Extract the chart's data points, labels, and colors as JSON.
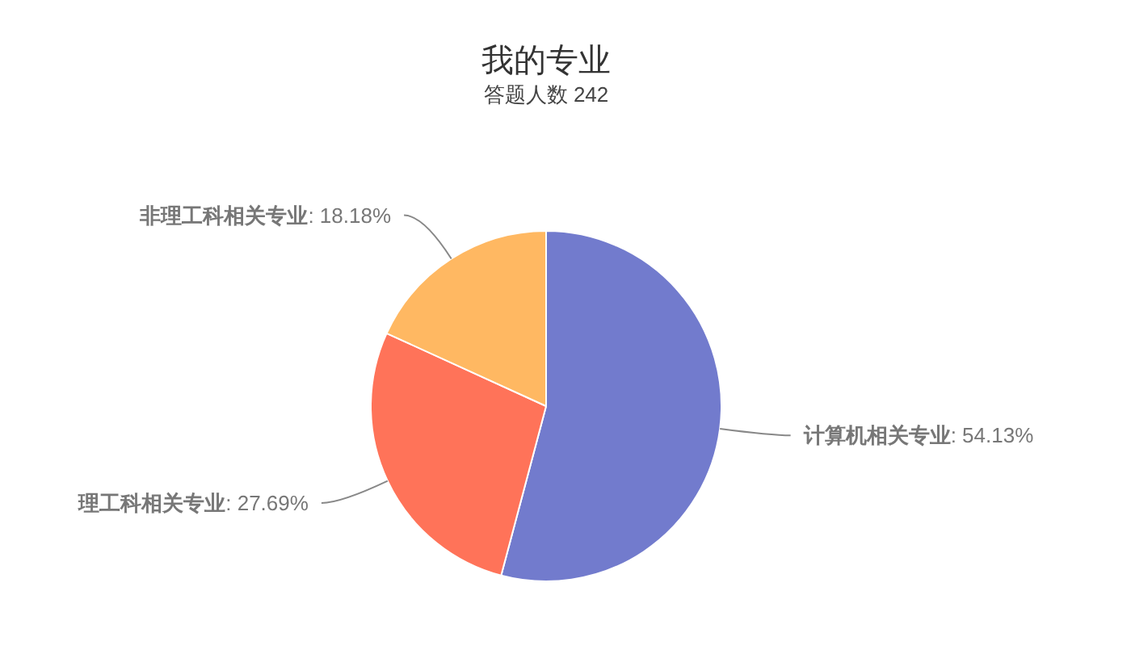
{
  "chart_data": {
    "type": "pie",
    "title": "我的专业",
    "subtitle": "答题人数 242",
    "categories": [
      "计算机相关专业",
      "理工科相关专业",
      "非理工科相关专业"
    ],
    "values": [
      54.13,
      27.69,
      18.18
    ],
    "value_labels": [
      ": 54.13%",
      ": 27.69%",
      ": 18.18%"
    ],
    "colors": [
      "#727bcd",
      "#ff7359",
      "#ffb862"
    ]
  }
}
